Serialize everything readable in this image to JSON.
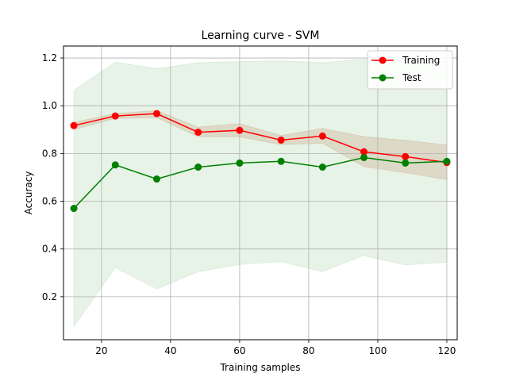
{
  "chart_data": {
    "type": "line",
    "title": "Learning curve - SVM",
    "xlabel": "Training samples",
    "ylabel": "Accuracy",
    "xlim": [
      9,
      123
    ],
    "ylim": [
      0.02,
      1.25
    ],
    "xticks": [
      20,
      40,
      60,
      80,
      100,
      120
    ],
    "yticks": [
      0.2,
      0.4,
      0.6,
      0.8,
      1.0,
      1.2
    ],
    "xtick_labels": [
      "20",
      "40",
      "60",
      "80",
      "100",
      "120"
    ],
    "ytick_labels": [
      "0.2",
      "0.4",
      "0.6",
      "0.8",
      "1.0",
      "1.2"
    ],
    "grid": true,
    "legend_position": "top-right",
    "x": [
      12,
      24,
      36,
      48,
      60,
      72,
      84,
      96,
      108,
      120
    ],
    "series": [
      {
        "name": "Training",
        "color": "#ff0000",
        "band_color": "#d9a08a",
        "values": [
          0.917,
          0.957,
          0.967,
          0.889,
          0.897,
          0.856,
          0.873,
          0.807,
          0.787,
          0.762
        ],
        "upper": [
          0.93,
          0.967,
          0.98,
          0.91,
          0.925,
          0.875,
          0.905,
          0.87,
          0.855,
          0.835
        ],
        "lower": [
          0.9,
          0.947,
          0.95,
          0.87,
          0.87,
          0.837,
          0.843,
          0.745,
          0.72,
          0.69
        ]
      },
      {
        "name": "Test",
        "color": "#008000",
        "band_color": "#cfe8cf",
        "values": [
          0.57,
          0.752,
          0.693,
          0.743,
          0.76,
          0.767,
          0.743,
          0.783,
          0.76,
          0.767
        ],
        "upper": [
          1.065,
          1.182,
          1.155,
          1.18,
          1.185,
          1.188,
          1.18,
          1.195,
          1.19,
          1.19
        ],
        "lower": [
          0.075,
          0.322,
          0.233,
          0.305,
          0.335,
          0.347,
          0.306,
          0.373,
          0.333,
          0.345
        ]
      }
    ]
  }
}
